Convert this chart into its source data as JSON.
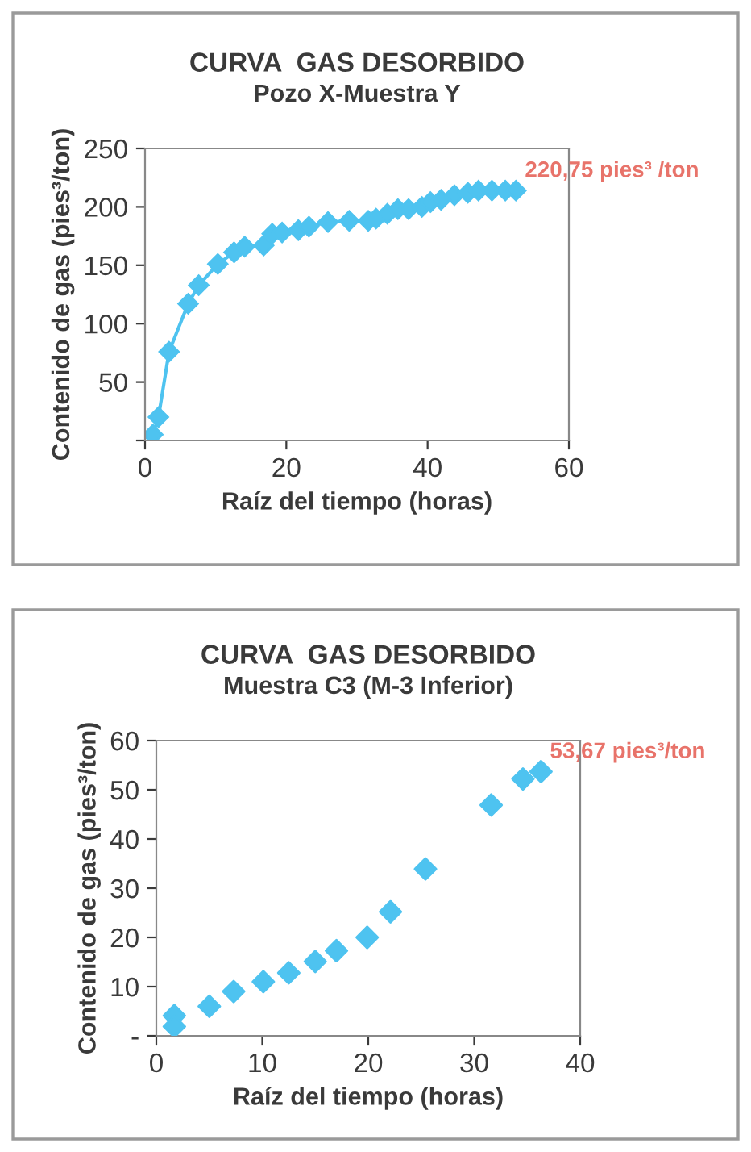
{
  "chart_data": [
    {
      "type": "line",
      "title": "CURVA  GAS DESORBIDO",
      "subtitle": "Pozo X-Muestra Y",
      "xlabel": "Raíz del tiempo (horas)",
      "ylabel": "Contenido de gas (pies³/ton)",
      "xlim": [
        0,
        60
      ],
      "xticks": [
        0,
        20,
        40,
        60
      ],
      "ylim": [
        0,
        250
      ],
      "yticks": [
        {
          "value": 0,
          "label": null
        },
        50,
        100,
        150,
        200,
        250
      ],
      "marker": "diamond",
      "line_style": "solid",
      "grid": false,
      "legend": false,
      "series": [
        {
          "color": "#4ec3f0",
          "x": [
            1.1,
            1.9,
            3.4,
            6.1,
            7.6,
            10.3,
            12.6,
            14.1,
            16.8,
            18,
            19.4,
            21.7,
            23.2,
            25.9,
            28.9,
            31.6,
            32.7,
            34.3,
            35.8,
            37.3,
            39.2,
            40.4,
            41.9,
            43.8,
            45.7,
            47.2,
            49.1,
            51,
            52.5
          ],
          "values": [
            5,
            20,
            76,
            117,
            133,
            151,
            161,
            166,
            167,
            177,
            178,
            180,
            183,
            187,
            188,
            188,
            190,
            194,
            198,
            198,
            200,
            204,
            206,
            210,
            212,
            214,
            214,
            214,
            214
          ]
        }
      ],
      "annotations": [
        {
          "text": "220,75 pies³ /ton",
          "x": 52.5,
          "y": 214
        }
      ]
    },
    {
      "type": "scatter",
      "title": "CURVA  GAS DESORBIDO",
      "subtitle": "Muestra C3 (M-3 Inferior)",
      "xlabel": "Raíz del tiempo (horas)",
      "ylabel": "Contenido de gas (pies³/ton)",
      "xlim": [
        0,
        40
      ],
      "xticks": [
        0,
        10,
        20,
        30,
        40
      ],
      "ylim": [
        0,
        60
      ],
      "yticks": [
        {
          "value": 0,
          "label": "-"
        },
        10,
        20,
        30,
        40,
        50,
        60
      ],
      "marker": "diamond",
      "grid": false,
      "legend": false,
      "series": [
        {
          "color": "#4ec3f0",
          "x": [
            1.7,
            1.7,
            5,
            7.3,
            10.1,
            12.5,
            15,
            17,
            19.9,
            22.1,
            25.4,
            31.6,
            34.6,
            36.3
          ],
          "values": [
            4.1,
            1.9,
            6,
            9,
            11,
            12.8,
            15.1,
            17.3,
            20,
            25.2,
            33.9,
            46.9,
            52.2,
            53.7
          ]
        }
      ],
      "annotations": [
        {
          "text": "53,67 pies³/ton",
          "x": 36.3,
          "y": 53.7
        }
      ]
    }
  ]
}
